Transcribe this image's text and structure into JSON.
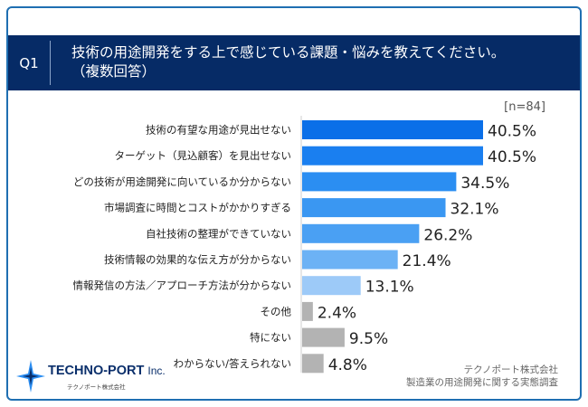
{
  "question": {
    "label": "Q1",
    "line1": "技術の用途開発をする上で感じている課題・悩みを教えてください。",
    "line2": "（複数回答）"
  },
  "sample_size": "[n=84]",
  "credit": {
    "line1": "テクノポート株式会社",
    "line2": "製造業の用途開発に関する実態調査"
  },
  "logo": {
    "name": "TECHNO-PORT",
    "suffix": "Inc.",
    "sub": "テクノポート株式会社",
    "icon": "spark-star-icon"
  },
  "colors": {
    "frame": "#1f6fb2",
    "header_bg": "#062b66"
  },
  "chart_data": {
    "type": "bar",
    "orientation": "horizontal",
    "categories": [
      "技術の有望な用途が見出せない",
      "ターゲット（見込顧客）を見出せない",
      "どの技術が用途開発に向いているか分からない",
      "市場調査に時間とコストがかかりすぎる",
      "自社技術の整理ができていない",
      "技術情報の効果的な伝え方が分からない",
      "情報発信の方法／アプローチ方法が分からない",
      "その他",
      "特にない",
      "わからない/答えられない"
    ],
    "values": [
      40.5,
      40.5,
      34.5,
      32.1,
      26.2,
      21.4,
      13.1,
      2.4,
      9.5,
      4.8
    ],
    "value_labels": [
      "40.5%",
      "40.5%",
      "34.5%",
      "32.1%",
      "26.2%",
      "21.4%",
      "13.1%",
      "2.4%",
      "9.5%",
      "4.8%"
    ],
    "colors": [
      "#0a6fe8",
      "#1a7ff0",
      "#2b8ef2",
      "#3a97f2",
      "#4aa0f3",
      "#6cb2f5",
      "#9dcaf8",
      "#b3b3b3",
      "#b3b3b3",
      "#b3b3b3"
    ],
    "xlim": [
      0,
      40.5
    ],
    "grid": false,
    "legend": "none"
  }
}
